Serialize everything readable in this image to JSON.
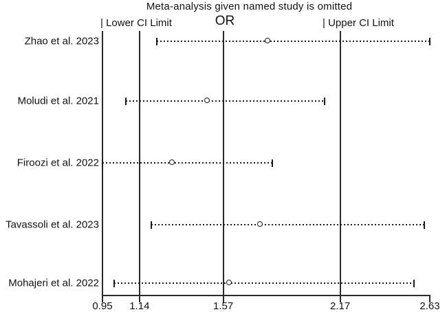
{
  "chart_data": {
    "type": "scatter",
    "subtype": "forest-leave-one-out-sensitivity",
    "title": "Meta-analysis given named study is omitted",
    "effect_label": "OR",
    "lower_label": "| Lower CI Limit",
    "upper_label": "| Upper CI Limit",
    "xlim": [
      0.95,
      2.63
    ],
    "x_ticks": [
      0.95,
      1.14,
      1.57,
      2.17,
      2.63
    ],
    "grid": false,
    "legend_position": "none",
    "overall": {
      "lower_ci": 1.14,
      "or": 1.57,
      "upper_ci": 2.17
    },
    "studies": [
      {
        "label": "Zhao et al. 2023",
        "lower": 1.23,
        "estimate": 1.8,
        "upper": 2.63
      },
      {
        "label": "Moludi et al. 2021",
        "lower": 1.07,
        "estimate": 1.49,
        "upper": 2.09
      },
      {
        "label": "Firoozi et al. 2022",
        "lower": 0.95,
        "estimate": 1.31,
        "upper": 1.82
      },
      {
        "label": "Tavassoli et al. 2023",
        "lower": 1.2,
        "estimate": 1.76,
        "upper": 2.6
      },
      {
        "label": "Mohajeri et al. 2022",
        "lower": 1.01,
        "estimate": 1.6,
        "upper": 2.55
      }
    ]
  }
}
